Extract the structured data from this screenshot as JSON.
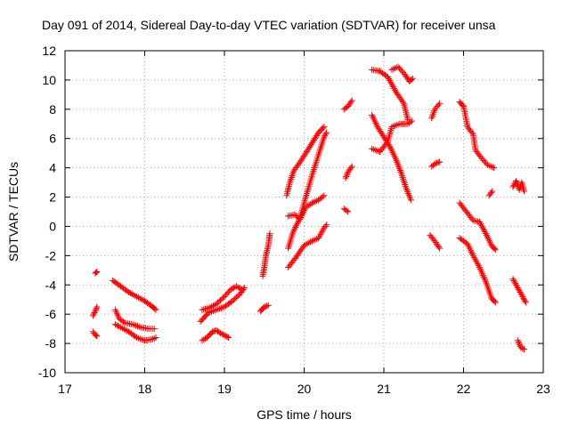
{
  "chart_data": {
    "type": "scatter",
    "title": "Day 091 of 2014, Sidereal Day-to-day VTEC variation (SDTVAR) for receiver unsa",
    "xlabel": "GPS time / hours",
    "ylabel": "SDTVAR / TECUs",
    "xlim": [
      17,
      23
    ],
    "ylim": [
      -10,
      12
    ],
    "xticks": [
      "17",
      "18",
      "19",
      "20",
      "21",
      "22",
      "23"
    ],
    "yticks": [
      "-10",
      "-8",
      "-6",
      "-4",
      "-2",
      "0",
      "2",
      "4",
      "6",
      "8",
      "10",
      "12"
    ],
    "grid": true,
    "marker": "+",
    "color": "#ff0000",
    "segments": [
      [
        [
          17.38,
          -3.2
        ],
        [
          17.4,
          -3.1
        ]
      ],
      [
        [
          17.35,
          -6.1
        ],
        [
          17.38,
          -5.8
        ],
        [
          17.4,
          -5.5
        ]
      ],
      [
        [
          17.35,
          -7.2
        ],
        [
          17.38,
          -7.4
        ],
        [
          17.4,
          -7.5
        ]
      ],
      [
        [
          17.6,
          -3.7
        ],
        [
          17.7,
          -4.1
        ],
        [
          17.8,
          -4.5
        ],
        [
          17.9,
          -4.8
        ],
        [
          18.0,
          -5.1
        ],
        [
          18.1,
          -5.5
        ],
        [
          18.14,
          -5.7
        ]
      ],
      [
        [
          17.63,
          -5.7
        ],
        [
          17.68,
          -6.3
        ],
        [
          17.75,
          -6.6
        ],
        [
          17.85,
          -6.7
        ],
        [
          17.95,
          -6.9
        ],
        [
          18.05,
          -7.0
        ],
        [
          18.12,
          -7.0
        ]
      ],
      [
        [
          17.63,
          -6.7
        ],
        [
          17.7,
          -6.9
        ],
        [
          17.8,
          -7.2
        ],
        [
          17.9,
          -7.6
        ],
        [
          18.0,
          -7.8
        ],
        [
          18.1,
          -7.7
        ],
        [
          18.14,
          -7.6
        ]
      ],
      [
        [
          18.7,
          -6.5
        ],
        [
          18.8,
          -5.9
        ],
        [
          18.9,
          -5.7
        ],
        [
          19.0,
          -5.5
        ],
        [
          19.1,
          -5.1
        ],
        [
          19.2,
          -4.6
        ],
        [
          19.25,
          -4.2
        ]
      ],
      [
        [
          18.72,
          -5.7
        ],
        [
          18.8,
          -5.6
        ],
        [
          18.9,
          -5.3
        ],
        [
          19.0,
          -4.8
        ],
        [
          19.08,
          -4.3
        ],
        [
          19.15,
          -4.1
        ],
        [
          19.22,
          -4.3
        ]
      ],
      [
        [
          18.72,
          -7.8
        ],
        [
          18.78,
          -7.6
        ],
        [
          18.85,
          -7.2
        ],
        [
          18.9,
          -7.1
        ],
        [
          18.95,
          -7.3
        ],
        [
          19.02,
          -7.5
        ],
        [
          19.05,
          -7.6
        ]
      ],
      [
        [
          19.48,
          -3.4
        ],
        [
          19.5,
          -2.8
        ],
        [
          19.52,
          -2.0
        ],
        [
          19.55,
          -1.3
        ],
        [
          19.57,
          -0.5
        ]
      ],
      [
        [
          19.45,
          -5.8
        ],
        [
          19.5,
          -5.5
        ],
        [
          19.55,
          -5.4
        ]
      ],
      [
        [
          19.78,
          2.1
        ],
        [
          19.82,
          3.0
        ],
        [
          19.87,
          3.8
        ],
        [
          19.95,
          4.4
        ],
        [
          20.02,
          5.0
        ],
        [
          20.1,
          5.7
        ],
        [
          20.18,
          6.4
        ],
        [
          20.25,
          6.8
        ]
      ],
      [
        [
          19.8,
          -1.5
        ],
        [
          19.86,
          -0.4
        ],
        [
          19.95,
          0.6
        ],
        [
          20.02,
          2.0
        ],
        [
          20.1,
          3.5
        ],
        [
          20.18,
          4.9
        ],
        [
          20.25,
          6.1
        ],
        [
          20.28,
          6.4
        ]
      ],
      [
        [
          19.8,
          0.7
        ],
        [
          19.88,
          0.8
        ],
        [
          19.95,
          0.5
        ],
        [
          20.02,
          1.3
        ],
        [
          20.1,
          1.6
        ],
        [
          20.18,
          1.8
        ],
        [
          20.25,
          2.1
        ]
      ],
      [
        [
          19.8,
          -2.8
        ],
        [
          19.9,
          -2.1
        ],
        [
          20.0,
          -1.3
        ],
        [
          20.1,
          -1.0
        ],
        [
          20.18,
          -0.8
        ],
        [
          20.25,
          -0.1
        ],
        [
          20.28,
          0.1
        ]
      ],
      [
        [
          20.5,
          8.0
        ],
        [
          20.55,
          8.2
        ],
        [
          20.6,
          8.6
        ]
      ],
      [
        [
          20.52,
          3.3
        ],
        [
          20.55,
          3.7
        ],
        [
          20.6,
          4.1
        ]
      ],
      [
        [
          20.5,
          1.2
        ],
        [
          20.55,
          1.0
        ]
      ],
      [
        [
          20.85,
          10.7
        ],
        [
          20.95,
          10.6
        ],
        [
          21.05,
          10.2
        ],
        [
          21.15,
          9.2
        ],
        [
          21.25,
          8.4
        ],
        [
          21.3,
          7.3
        ]
      ],
      [
        [
          21.1,
          10.7
        ],
        [
          21.18,
          10.9
        ],
        [
          21.26,
          10.4
        ],
        [
          21.32,
          9.9
        ],
        [
          21.36,
          10.1
        ]
      ],
      [
        [
          20.85,
          7.6
        ],
        [
          20.92,
          6.8
        ],
        [
          21.0,
          6.1
        ],
        [
          21.08,
          5.4
        ],
        [
          21.15,
          4.6
        ],
        [
          21.22,
          3.6
        ],
        [
          21.28,
          2.6
        ],
        [
          21.34,
          1.8
        ]
      ],
      [
        [
          20.85,
          5.3
        ],
        [
          20.95,
          5.1
        ],
        [
          21.05,
          5.8
        ],
        [
          21.1,
          6.8
        ],
        [
          21.2,
          7.0
        ],
        [
          21.3,
          7.0
        ],
        [
          21.35,
          7.2
        ]
      ],
      [
        [
          21.6,
          7.4
        ],
        [
          21.64,
          8.0
        ],
        [
          21.7,
          8.4
        ]
      ],
      [
        [
          21.6,
          4.1
        ],
        [
          21.65,
          4.3
        ],
        [
          21.7,
          4.4
        ]
      ],
      [
        [
          21.58,
          -0.6
        ],
        [
          21.65,
          -1.1
        ],
        [
          21.7,
          -1.5
        ]
      ],
      [
        [
          21.95,
          8.5
        ],
        [
          22.0,
          8.2
        ],
        [
          22.05,
          6.8
        ],
        [
          22.12,
          6.3
        ],
        [
          22.15,
          5.2
        ],
        [
          22.22,
          4.7
        ],
        [
          22.3,
          4.2
        ],
        [
          22.38,
          4.0
        ]
      ],
      [
        [
          21.95,
          1.6
        ],
        [
          22.05,
          0.9
        ],
        [
          22.12,
          0.4
        ],
        [
          22.2,
          0.3
        ],
        [
          22.28,
          -0.5
        ],
        [
          22.35,
          -1.3
        ],
        [
          22.4,
          -1.6
        ]
      ],
      [
        [
          21.95,
          -0.8
        ],
        [
          22.05,
          -1.2
        ],
        [
          22.12,
          -2.0
        ],
        [
          22.2,
          -2.8
        ],
        [
          22.28,
          -3.8
        ],
        [
          22.35,
          -4.9
        ],
        [
          22.4,
          -5.2
        ]
      ],
      [
        [
          22.32,
          2.1
        ],
        [
          22.36,
          2.4
        ]
      ],
      [
        [
          22.62,
          2.7
        ],
        [
          22.66,
          3.1
        ],
        [
          22.7,
          2.5
        ],
        [
          22.73,
          3.0
        ],
        [
          22.76,
          2.4
        ]
      ],
      [
        [
          22.62,
          -3.6
        ],
        [
          22.68,
          -4.2
        ],
        [
          22.74,
          -4.8
        ],
        [
          22.78,
          -5.2
        ]
      ],
      [
        [
          22.68,
          -7.8
        ],
        [
          22.72,
          -8.3
        ],
        [
          22.76,
          -8.4
        ]
      ]
    ]
  }
}
